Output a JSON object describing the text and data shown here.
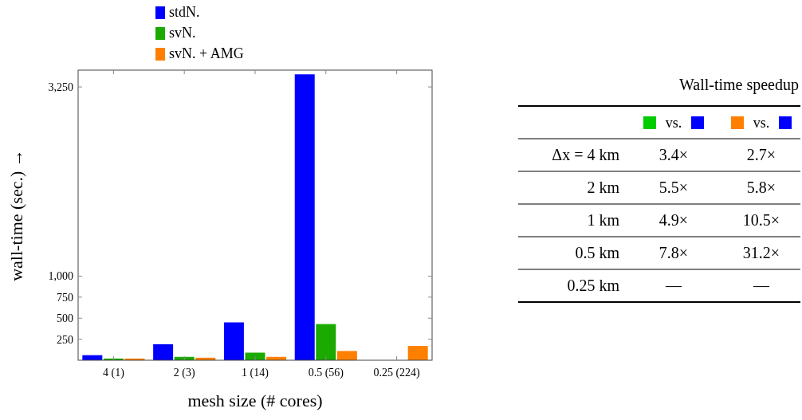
{
  "chart_data": [
    {
      "type": "bar",
      "xlabel": "mesh size (# cores)",
      "ylabel": "wall-time (sec.) →",
      "categories": [
        "4 (1)",
        "2 (3)",
        "1 (14)",
        "0.5 (56)",
        "0.25 (224)"
      ],
      "series": [
        {
          "name": "stdN.",
          "color": "#0000ff",
          "values": [
            60,
            190,
            450,
            3400,
            null
          ]
        },
        {
          "name": "svN.",
          "color": "#1aaa00",
          "values": [
            20,
            40,
            90,
            430,
            null
          ]
        },
        {
          "name": "svN. + AMG",
          "color": "#ff8000",
          "values": [
            20,
            30,
            40,
            110,
            170
          ]
        }
      ],
      "ylim": [
        0,
        3450
      ],
      "yticks": [
        250,
        500,
        750,
        {
          "value": 1000,
          "label": "1,000"
        },
        {
          "value": 3250,
          "label": "3,250"
        }
      ],
      "grid": false,
      "legend": "top"
    },
    {
      "type": "other",
      "title": "Wall-time speedup",
      "categories": [
        "vs.",
        "vs."
      ],
      "colors": [
        [
          "#00cc00",
          "#0000ff"
        ],
        [
          "#ff8000",
          "#0000ff"
        ]
      ],
      "y_categories": [
        "Δx = 4 km",
        "2 km",
        "1 km",
        "0.5 km",
        "0.25 km"
      ],
      "cell_labels": [
        [
          "3.4×",
          "2.7×"
        ],
        [
          "5.5×",
          "5.8×"
        ],
        [
          "4.9×",
          "10.5×"
        ],
        [
          "7.8×",
          "31.2×"
        ],
        [
          "—",
          "—"
        ]
      ]
    }
  ]
}
